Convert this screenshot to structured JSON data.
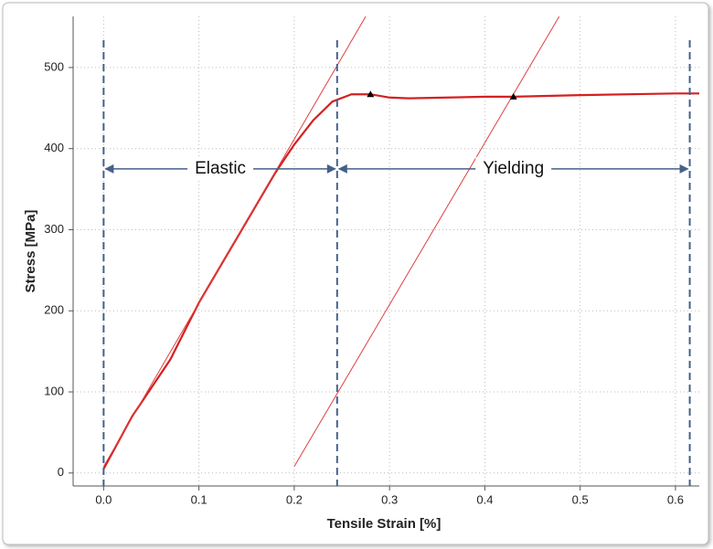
{
  "chart_data": {
    "type": "line",
    "xlabel": "Tensile Strain [%]",
    "ylabel": "Stress [MPa]",
    "xlim": [
      -0.032,
      0.625
    ],
    "ylim": [
      -16,
      563
    ],
    "xticks": [
      {
        "value": 0,
        "label": "0.0"
      },
      0.1,
      0.2,
      0.3,
      0.4,
      0.5,
      0.6
    ],
    "yticks": [
      0,
      100,
      200,
      300,
      400,
      500
    ],
    "grid": true,
    "series": [
      {
        "color": "#d42020",
        "line_width": 2.2,
        "x": [
          0,
          0.03,
          0.07,
          0.1,
          0.15,
          0.18,
          0.2,
          0.22,
          0.24,
          0.26,
          0.28,
          0.3,
          0.32,
          0.4,
          0.43,
          0.5,
          0.6,
          0.625
        ],
        "values": [
          5,
          70,
          140,
          210,
          310,
          370,
          405,
          435,
          458,
          467,
          467,
          463,
          462,
          464,
          464,
          466,
          468,
          468
        ]
      },
      {
        "color": "#e04040",
        "line_width": 1,
        "x": [
          0,
          0.275
        ],
        "values": [
          8,
          563
        ]
      },
      {
        "color": "#e04040",
        "line_width": 1,
        "x": [
          0.2,
          0.478
        ],
        "values": [
          8,
          563
        ]
      }
    ],
    "markers": {
      "color": "#000000",
      "x": [
        0.28,
        0.43
      ],
      "values": [
        467,
        464
      ]
    },
    "vlines": {
      "color": "#44618a",
      "style": "dashed",
      "x": [
        0,
        0.245,
        0.615
      ]
    },
    "regions": [
      {
        "label": "Elastic",
        "from": 0,
        "to": 0.245,
        "y": 375
      },
      {
        "label": "Yielding",
        "from": 0.245,
        "to": 0.615,
        "y": 375
      }
    ],
    "region_color": "#44618a"
  }
}
